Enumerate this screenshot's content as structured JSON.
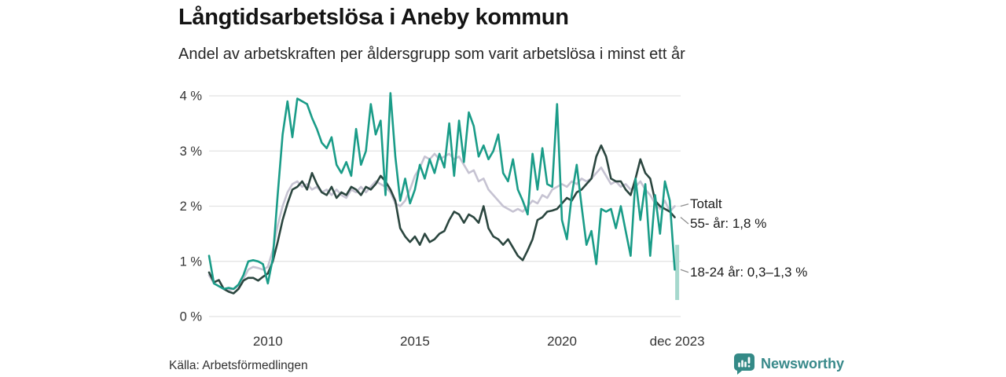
{
  "header": {
    "title": "Långtidsarbetslösa i Aneby kommun",
    "subtitle": "Andel av arbetskraften per åldersgrupp som varit arbetslösa i minst ett år"
  },
  "footer": {
    "source": "Källa: Arbetsförmedlingen",
    "brand_name": "Newsworthy"
  },
  "colors": {
    "brand_teal": "#38898a",
    "badge_teal": "#348a87",
    "grid": "#e2e2e2",
    "axis_text": "#333333",
    "label_text": "#1b1b1b",
    "leader_line": "#8f8f8f"
  },
  "chart_data": {
    "type": "line",
    "title": "Långtidsarbetslösa i Aneby kommun",
    "subtitle": "Andel av arbetskraften per åldersgrupp som varit arbetslösa i minst ett år",
    "xlabel": "",
    "ylabel": "",
    "grid": true,
    "legend_position": "end-of-line",
    "x_start_year": 2008,
    "x_step_years": 0.1666667,
    "xlim_years": [
      2008,
      2023.92
    ],
    "ylim": [
      0,
      4.3
    ],
    "y_unit": "%",
    "x_ticks": [
      {
        "t": 2010,
        "label": "2010"
      },
      {
        "t": 2015,
        "label": "2015"
      },
      {
        "t": 2020,
        "label": "2020"
      },
      {
        "t": 2023.917,
        "label": "dec 2023"
      }
    ],
    "y_ticks": [
      {
        "v": 0,
        "label": "0 %"
      },
      {
        "v": 1,
        "label": "1 %"
      },
      {
        "v": 2,
        "label": "2 %"
      },
      {
        "v": 3,
        "label": "3 %"
      },
      {
        "v": 4,
        "label": "4 %"
      }
    ],
    "series": [
      {
        "name": "Totalt",
        "color": "#c6c3d2",
        "end_label": {
          "text": "Totalt",
          "at_value": 2.04
        },
        "values": [
          0.75,
          0.6,
          0.55,
          0.5,
          0.48,
          0.5,
          0.55,
          0.68,
          0.85,
          0.9,
          0.88,
          0.85,
          0.9,
          1.2,
          1.65,
          2.0,
          2.25,
          2.4,
          2.45,
          2.35,
          2.4,
          2.3,
          2.35,
          2.25,
          2.3,
          2.2,
          2.3,
          2.2,
          2.15,
          2.3,
          2.25,
          2.35,
          2.25,
          2.35,
          2.45,
          2.4,
          2.35,
          2.25,
          2.05,
          2.0,
          2.1,
          2.3,
          2.55,
          2.7,
          2.9,
          2.85,
          2.95,
          2.85,
          2.9,
          2.95,
          2.85,
          2.9,
          2.75,
          2.6,
          2.65,
          2.45,
          2.5,
          2.3,
          2.2,
          2.1,
          2.0,
          1.95,
          1.9,
          1.95,
          1.9,
          2.0,
          2.1,
          2.05,
          2.2,
          2.15,
          2.3,
          2.35,
          2.4,
          2.35,
          2.45,
          2.4,
          2.5,
          2.45,
          2.5,
          2.6,
          2.7,
          2.55,
          2.4,
          2.45,
          2.35,
          2.4,
          2.3,
          2.35,
          2.45,
          2.3,
          2.2,
          2.05,
          1.95,
          2.1,
          1.9,
          2.0
        ]
      },
      {
        "name": "55- år",
        "color": "#2b463f",
        "latest_value_text": "1,8 %",
        "end_label": {
          "text": "55- år: 1,8 %",
          "at_value": 1.68
        },
        "values": [
          0.8,
          0.62,
          0.66,
          0.5,
          0.45,
          0.42,
          0.5,
          0.65,
          0.7,
          0.7,
          0.65,
          0.72,
          0.78,
          1.0,
          1.35,
          1.75,
          2.05,
          2.3,
          2.35,
          2.45,
          2.3,
          2.6,
          2.4,
          2.25,
          2.2,
          2.35,
          2.15,
          2.25,
          2.2,
          2.35,
          2.3,
          2.2,
          2.35,
          2.3,
          2.4,
          2.55,
          2.45,
          2.3,
          2.1,
          1.6,
          1.45,
          1.35,
          1.45,
          1.3,
          1.5,
          1.35,
          1.4,
          1.5,
          1.55,
          1.75,
          1.9,
          1.85,
          1.7,
          1.85,
          1.8,
          1.7,
          2.0,
          1.6,
          1.45,
          1.4,
          1.3,
          1.4,
          1.25,
          1.1,
          1.02,
          1.2,
          1.4,
          1.75,
          1.8,
          1.9,
          1.92,
          1.95,
          2.05,
          2.15,
          2.1,
          2.25,
          2.3,
          2.4,
          2.5,
          2.9,
          3.1,
          2.9,
          2.5,
          2.45,
          2.45,
          2.3,
          2.2,
          2.5,
          2.85,
          2.6,
          2.5,
          2.1,
          2.0,
          1.95,
          1.9,
          1.8
        ]
      },
      {
        "name": "18-24 år",
        "color": "#1a9c88",
        "latest_value_text": "0,3–1,3 %",
        "end_label": {
          "text": "18-24 år: 0,3–1,3 %",
          "at_value": 0.8
        },
        "end_band": {
          "t": 2023.917,
          "low": 0.3,
          "high": 1.3,
          "color": "#a6d8cd"
        },
        "values": [
          1.1,
          0.6,
          0.55,
          0.5,
          0.52,
          0.5,
          0.58,
          0.75,
          1.0,
          1.02,
          1.0,
          0.95,
          0.6,
          1.05,
          2.2,
          3.3,
          3.9,
          3.25,
          3.95,
          3.9,
          3.85,
          3.6,
          3.4,
          3.15,
          3.05,
          3.25,
          2.75,
          2.6,
          2.8,
          2.55,
          3.4,
          2.75,
          3.0,
          3.85,
          3.3,
          3.55,
          2.2,
          4.05,
          2.9,
          2.1,
          2.5,
          2.05,
          2.3,
          2.75,
          2.5,
          2.85,
          2.6,
          2.95,
          2.7,
          3.5,
          2.55,
          3.55,
          2.8,
          3.7,
          3.45,
          2.9,
          3.1,
          2.85,
          3.0,
          3.3,
          2.6,
          2.45,
          2.85,
          2.3,
          2.1,
          1.85,
          2.95,
          2.3,
          3.05,
          2.4,
          2.35,
          3.85,
          1.75,
          1.4,
          2.2,
          2.75,
          2.0,
          1.3,
          1.55,
          0.95,
          1.95,
          1.9,
          1.95,
          1.6,
          2.0,
          1.55,
          1.1,
          2.5,
          1.75,
          2.4,
          1.1,
          2.2,
          1.5,
          2.45,
          2.1,
          0.85
        ]
      }
    ]
  }
}
